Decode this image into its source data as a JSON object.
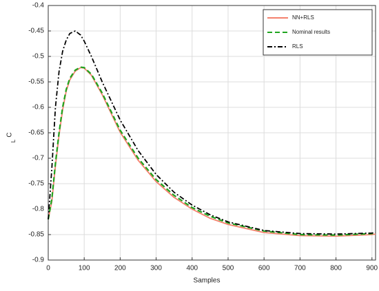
{
  "chart_data": {
    "type": "line",
    "xlabel": "Samples",
    "ylabel": "C",
    "ylabel_sub": "L",
    "x": [
      0,
      10,
      20,
      30,
      40,
      50,
      60,
      75,
      90,
      100,
      120,
      150,
      200,
      250,
      300,
      350,
      400,
      450,
      500,
      600,
      700,
      800,
      900,
      910
    ],
    "series": [
      {
        "name": "NN+RLS",
        "color": "#f4806c",
        "dash": "solid",
        "values": [
          -0.82,
          -0.785,
          -0.715,
          -0.655,
          -0.605,
          -0.568,
          -0.546,
          -0.529,
          -0.522,
          -0.523,
          -0.537,
          -0.575,
          -0.649,
          -0.704,
          -0.746,
          -0.777,
          -0.8,
          -0.818,
          -0.83,
          -0.846,
          -0.852,
          -0.853,
          -0.85,
          -0.849
        ]
      },
      {
        "name": "Nominal results",
        "color": "#1fa51f",
        "dash": "dashed",
        "values": [
          -0.82,
          -0.78,
          -0.71,
          -0.65,
          -0.6,
          -0.565,
          -0.543,
          -0.527,
          -0.521,
          -0.522,
          -0.535,
          -0.572,
          -0.645,
          -0.7,
          -0.742,
          -0.773,
          -0.797,
          -0.814,
          -0.827,
          -0.843,
          -0.85,
          -0.851,
          -0.848,
          -0.847
        ]
      },
      {
        "name": "RLS",
        "color": "#000000",
        "dash": "dashdot",
        "values": [
          -0.82,
          -0.72,
          -0.6,
          -0.53,
          -0.49,
          -0.468,
          -0.455,
          -0.45,
          -0.458,
          -0.47,
          -0.5,
          -0.55,
          -0.625,
          -0.685,
          -0.732,
          -0.767,
          -0.792,
          -0.811,
          -0.825,
          -0.842,
          -0.848,
          -0.849,
          -0.847,
          -0.846
        ]
      }
    ],
    "xlim": [
      0,
      910
    ],
    "xticks": [
      0,
      100,
      200,
      300,
      400,
      500,
      600,
      700,
      800,
      900
    ],
    "ylim": [
      -0.9,
      -0.4
    ],
    "yticks": [
      -0.9,
      -0.85,
      -0.8,
      -0.75,
      -0.7,
      -0.65,
      -0.6,
      -0.55,
      -0.5,
      -0.45,
      -0.4
    ],
    "grid": true,
    "legend": "upper-right"
  }
}
